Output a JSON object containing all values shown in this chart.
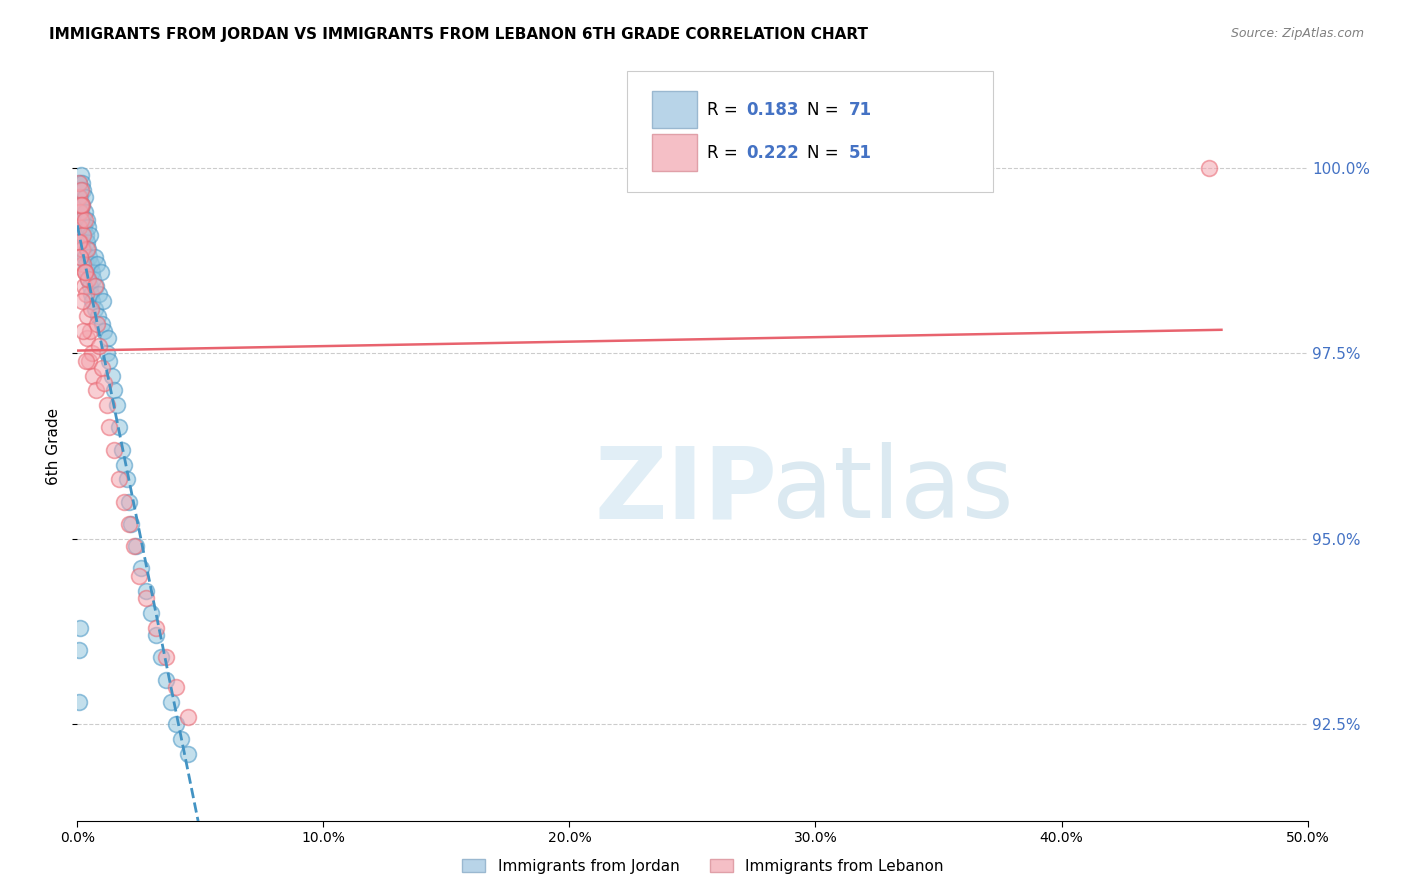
{
  "title": "IMMIGRANTS FROM JORDAN VS IMMIGRANTS FROM LEBANON 6TH GRADE CORRELATION CHART",
  "source": "Source: ZipAtlas.com",
  "ylabel": "6th Grade",
  "ylabel_tick_vals": [
    92.5,
    95.0,
    97.5,
    100.0
  ],
  "xlim": [
    0.0,
    50.0
  ],
  "ylim": [
    91.2,
    101.3
  ],
  "xtick_vals": [
    0,
    10,
    20,
    30,
    40,
    50
  ],
  "xtick_labels": [
    "0.0%",
    "10.0%",
    "20.0%",
    "30.0%",
    "40.0%",
    "50.0%"
  ],
  "R_jordan": 0.183,
  "N_jordan": 71,
  "R_lebanon": 0.222,
  "N_lebanon": 51,
  "color_jordan": "#92c5de",
  "color_lebanon": "#f4a6b0",
  "color_jordan_line": "#4393c3",
  "color_lebanon_line": "#e8636e",
  "jordan_x": [
    0.05,
    0.05,
    0.08,
    0.1,
    0.1,
    0.12,
    0.15,
    0.15,
    0.18,
    0.18,
    0.2,
    0.2,
    0.22,
    0.25,
    0.25,
    0.28,
    0.3,
    0.3,
    0.32,
    0.35,
    0.35,
    0.38,
    0.4,
    0.4,
    0.42,
    0.45,
    0.45,
    0.48,
    0.5,
    0.5,
    0.55,
    0.55,
    0.6,
    0.6,
    0.65,
    0.7,
    0.7,
    0.75,
    0.8,
    0.85,
    0.9,
    0.95,
    1.0,
    1.05,
    1.1,
    1.2,
    1.25,
    1.3,
    1.4,
    1.5,
    1.6,
    1.7,
    1.8,
    1.9,
    2.0,
    2.1,
    2.2,
    2.4,
    2.6,
    2.8,
    3.0,
    3.2,
    3.4,
    3.6,
    3.8,
    4.0,
    4.2,
    4.5,
    0.05,
    0.08,
    0.12
  ],
  "jordan_y": [
    99.5,
    99.2,
    99.8,
    99.6,
    99.3,
    99.7,
    99.9,
    99.4,
    99.8,
    99.1,
    99.5,
    99.0,
    99.3,
    99.7,
    98.9,
    99.2,
    99.6,
    98.8,
    99.4,
    99.1,
    98.7,
    99.3,
    99.0,
    98.6,
    98.9,
    99.2,
    98.5,
    98.8,
    99.1,
    98.4,
    98.7,
    98.3,
    98.6,
    98.2,
    98.5,
    98.8,
    98.1,
    98.4,
    98.7,
    98.0,
    98.3,
    98.6,
    97.9,
    98.2,
    97.8,
    97.5,
    97.7,
    97.4,
    97.2,
    97.0,
    96.8,
    96.5,
    96.2,
    96.0,
    95.8,
    95.5,
    95.2,
    94.9,
    94.6,
    94.3,
    94.0,
    93.7,
    93.4,
    93.1,
    92.8,
    92.5,
    92.3,
    92.1,
    92.8,
    93.5,
    93.8
  ],
  "lebanon_x": [
    0.05,
    0.05,
    0.08,
    0.1,
    0.12,
    0.15,
    0.15,
    0.18,
    0.2,
    0.22,
    0.25,
    0.28,
    0.3,
    0.32,
    0.35,
    0.38,
    0.4,
    0.4,
    0.45,
    0.48,
    0.5,
    0.55,
    0.6,
    0.65,
    0.7,
    0.75,
    0.8,
    0.9,
    1.0,
    1.1,
    1.2,
    1.3,
    1.5,
    1.7,
    1.9,
    2.1,
    2.3,
    2.5,
    2.8,
    3.2,
    3.6,
    4.0,
    4.5,
    0.08,
    0.12,
    0.15,
    0.2,
    0.25,
    0.3,
    0.35,
    46.0
  ],
  "lebanon_y": [
    99.6,
    99.2,
    99.8,
    99.4,
    99.0,
    99.7,
    99.3,
    98.9,
    99.5,
    99.1,
    98.7,
    98.4,
    99.3,
    98.6,
    98.3,
    98.0,
    98.9,
    97.7,
    98.5,
    97.4,
    97.8,
    98.1,
    97.5,
    97.2,
    98.4,
    97.0,
    97.9,
    97.6,
    97.3,
    97.1,
    96.8,
    96.5,
    96.2,
    95.8,
    95.5,
    95.2,
    94.9,
    94.5,
    94.2,
    93.8,
    93.4,
    93.0,
    92.6,
    99.0,
    98.8,
    99.5,
    98.2,
    97.8,
    98.6,
    97.4,
    100.0
  ],
  "legend_text": [
    "R = 0.183   N = 71",
    "R = 0.222   N = 51"
  ],
  "bottom_legend": [
    "Immigrants from Jordan",
    "Immigrants from Lebanon"
  ]
}
